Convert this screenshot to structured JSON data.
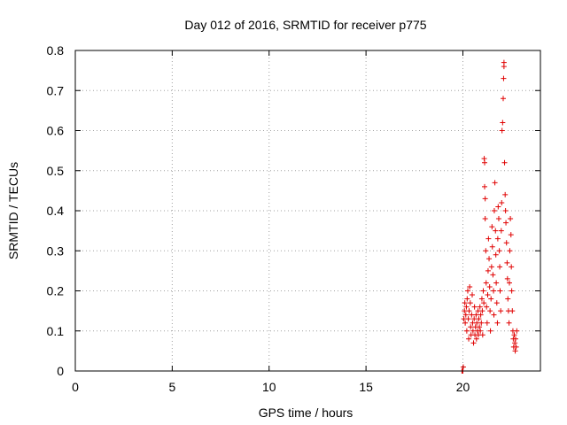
{
  "chart_data": {
    "type": "scatter",
    "title": "Day 012 of 2016, SRMTID for receiver p775",
    "xlabel": "GPS time / hours",
    "ylabel": "SRMTID / TECUs",
    "xlim": [
      0,
      24
    ],
    "ylim": [
      0,
      0.8
    ],
    "xticks": [
      0,
      5,
      10,
      15,
      20
    ],
    "xtick_labels": [
      "0",
      "5",
      "10",
      "15",
      "20"
    ],
    "yticks": [
      0,
      0.1,
      0.2,
      0.3,
      0.4,
      0.5,
      0.6,
      0.7,
      0.8
    ],
    "ytick_labels": [
      "0",
      "0.1",
      "0.2",
      "0.3",
      "0.4",
      "0.5",
      "0.6",
      "0.7",
      "0.8"
    ],
    "grid": true,
    "marker": "+",
    "color": "#e00000",
    "series": [
      {
        "name": "SRMTID",
        "points": [
          [
            19.95,
            0.0
          ],
          [
            20.0,
            0.0
          ],
          [
            20.02,
            0.01
          ],
          [
            20.05,
            0.13
          ],
          [
            20.08,
            0.15
          ],
          [
            20.1,
            0.17
          ],
          [
            20.12,
            0.12
          ],
          [
            20.15,
            0.14
          ],
          [
            20.18,
            0.16
          ],
          [
            20.2,
            0.1
          ],
          [
            20.22,
            0.18
          ],
          [
            20.25,
            0.2
          ],
          [
            20.28,
            0.13
          ],
          [
            20.3,
            0.08
          ],
          [
            20.32,
            0.15
          ],
          [
            20.35,
            0.21
          ],
          [
            20.38,
            0.17
          ],
          [
            20.4,
            0.11
          ],
          [
            20.42,
            0.09
          ],
          [
            20.45,
            0.14
          ],
          [
            20.48,
            0.19
          ],
          [
            20.5,
            0.12
          ],
          [
            20.52,
            0.1
          ],
          [
            20.55,
            0.07
          ],
          [
            20.58,
            0.13
          ],
          [
            20.6,
            0.16
          ],
          [
            20.62,
            0.09
          ],
          [
            20.65,
            0.11
          ],
          [
            20.68,
            0.14
          ],
          [
            20.7,
            0.08
          ],
          [
            20.72,
            0.12
          ],
          [
            20.75,
            0.1
          ],
          [
            20.78,
            0.15
          ],
          [
            20.8,
            0.09
          ],
          [
            20.82,
            0.13
          ],
          [
            20.85,
            0.11
          ],
          [
            20.88,
            0.16
          ],
          [
            20.9,
            0.1
          ],
          [
            20.92,
            0.14
          ],
          [
            20.95,
            0.12
          ],
          [
            20.98,
            0.18
          ],
          [
            21.0,
            0.15
          ],
          [
            21.02,
            0.09
          ],
          [
            21.05,
            0.2
          ],
          [
            21.08,
            0.17
          ],
          [
            21.1,
            0.53
          ],
          [
            21.12,
            0.52
          ],
          [
            21.12,
            0.46
          ],
          [
            21.15,
            0.38
          ],
          [
            21.15,
            0.43
          ],
          [
            21.18,
            0.3
          ],
          [
            21.2,
            0.22
          ],
          [
            21.22,
            0.16
          ],
          [
            21.25,
            0.12
          ],
          [
            21.28,
            0.19
          ],
          [
            21.3,
            0.25
          ],
          [
            21.32,
            0.33
          ],
          [
            21.35,
            0.28
          ],
          [
            21.38,
            0.21
          ],
          [
            21.4,
            0.15
          ],
          [
            21.42,
            0.1
          ],
          [
            21.45,
            0.18
          ],
          [
            21.48,
            0.26
          ],
          [
            21.5,
            0.36
          ],
          [
            21.52,
            0.31
          ],
          [
            21.55,
            0.24
          ],
          [
            21.58,
            0.2
          ],
          [
            21.6,
            0.14
          ],
          [
            21.62,
            0.4
          ],
          [
            21.65,
            0.47
          ],
          [
            21.68,
            0.35
          ],
          [
            21.7,
            0.29
          ],
          [
            21.72,
            0.22
          ],
          [
            21.75,
            0.17
          ],
          [
            21.78,
            0.12
          ],
          [
            21.8,
            0.33
          ],
          [
            21.82,
            0.41
          ],
          [
            21.85,
            0.38
          ],
          [
            21.88,
            0.3
          ],
          [
            21.9,
            0.26
          ],
          [
            21.92,
            0.2
          ],
          [
            21.95,
            0.15
          ],
          [
            21.98,
            0.35
          ],
          [
            22.0,
            0.42
          ],
          [
            22.02,
            0.6
          ],
          [
            22.05,
            0.62
          ],
          [
            22.08,
            0.68
          ],
          [
            22.1,
            0.73
          ],
          [
            22.12,
            0.77
          ],
          [
            22.12,
            0.76
          ],
          [
            22.15,
            0.52
          ],
          [
            22.18,
            0.44
          ],
          [
            22.2,
            0.4
          ],
          [
            22.22,
            0.37
          ],
          [
            22.25,
            0.32
          ],
          [
            22.28,
            0.27
          ],
          [
            22.3,
            0.23
          ],
          [
            22.32,
            0.18
          ],
          [
            22.35,
            0.15
          ],
          [
            22.38,
            0.12
          ],
          [
            22.4,
            0.22
          ],
          [
            22.42,
            0.3
          ],
          [
            22.45,
            0.38
          ],
          [
            22.48,
            0.34
          ],
          [
            22.5,
            0.26
          ],
          [
            22.52,
            0.2
          ],
          [
            22.55,
            0.15
          ],
          [
            22.58,
            0.1
          ],
          [
            22.6,
            0.08
          ],
          [
            22.62,
            0.06
          ],
          [
            22.65,
            0.09
          ],
          [
            22.68,
            0.07
          ],
          [
            22.7,
            0.05
          ],
          [
            22.72,
            0.08
          ],
          [
            22.75,
            0.06
          ],
          [
            22.78,
            0.1
          ]
        ]
      }
    ]
  }
}
